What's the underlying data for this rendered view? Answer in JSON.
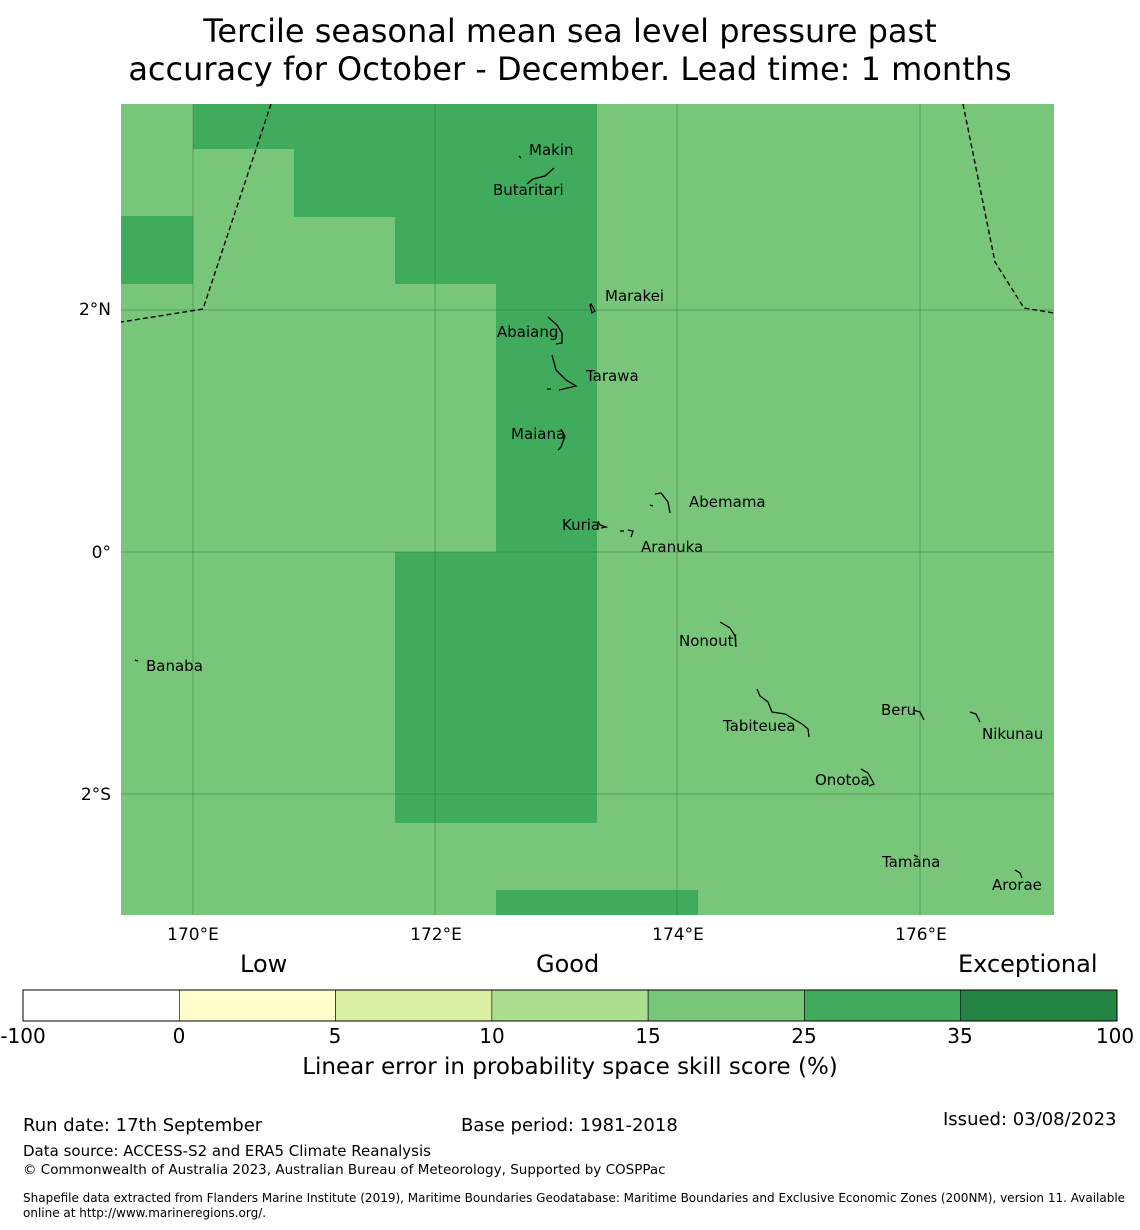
{
  "title": {
    "line1": "Tercile seasonal mean sea level pressure past",
    "line2": "accuracy for October - December. Lead time: 1 months"
  },
  "map": {
    "lon_labels": [
      "170°E",
      "172°E",
      "174°E",
      "176°E"
    ],
    "lat_labels": [
      "2°N",
      "0°",
      "2°S"
    ],
    "islands": [
      {
        "name": "Makin"
      },
      {
        "name": "Butaritari"
      },
      {
        "name": "Marakei"
      },
      {
        "name": "Abaiang"
      },
      {
        "name": "Tarawa"
      },
      {
        "name": "Maiana"
      },
      {
        "name": "Abemama"
      },
      {
        "name": "Kuria"
      },
      {
        "name": "Aranuka"
      },
      {
        "name": "Banaba"
      },
      {
        "name": "Nonouti"
      },
      {
        "name": "Beru"
      },
      {
        "name": "Nikunau"
      },
      {
        "name": "Tabiteuea"
      },
      {
        "name": "Onotoa"
      },
      {
        "name": "Tamana"
      },
      {
        "name": "Arorae"
      }
    ]
  },
  "colorbar": {
    "categories": [
      "Low",
      "Good",
      "Exceptional"
    ],
    "ticks": [
      "-100",
      "0",
      "5",
      "10",
      "15",
      "25",
      "35",
      "100"
    ],
    "colors": [
      "#ffffff",
      "#ffffcc",
      "#d9f0a3",
      "#addd8e",
      "#78c679",
      "#41ab5d",
      "#238443"
    ],
    "label": "Linear error in probability space skill score (%)"
  },
  "footer": {
    "run_date": "Run date: 17th September",
    "base_period": "Base period: 1981-2018",
    "issued": "Issued: 03/08/2023",
    "data_source": "Data source: ACCESS-S2 and ERA5 Climate Reanalysis",
    "copyright": "© Commonwealth of Australia 2023, Australian Bureau of Meteorology, Supported by COSPPac",
    "shapefile_line1": "Shapefile data extracted from Flanders Marine Institute (2019), Maritime Boundaries Geodatabase: Maritime Boundaries and Exclusive Economic Zones (200NM), version 11. Available",
    "shapefile_line2": "online at http://www.marineregions.org/."
  }
}
